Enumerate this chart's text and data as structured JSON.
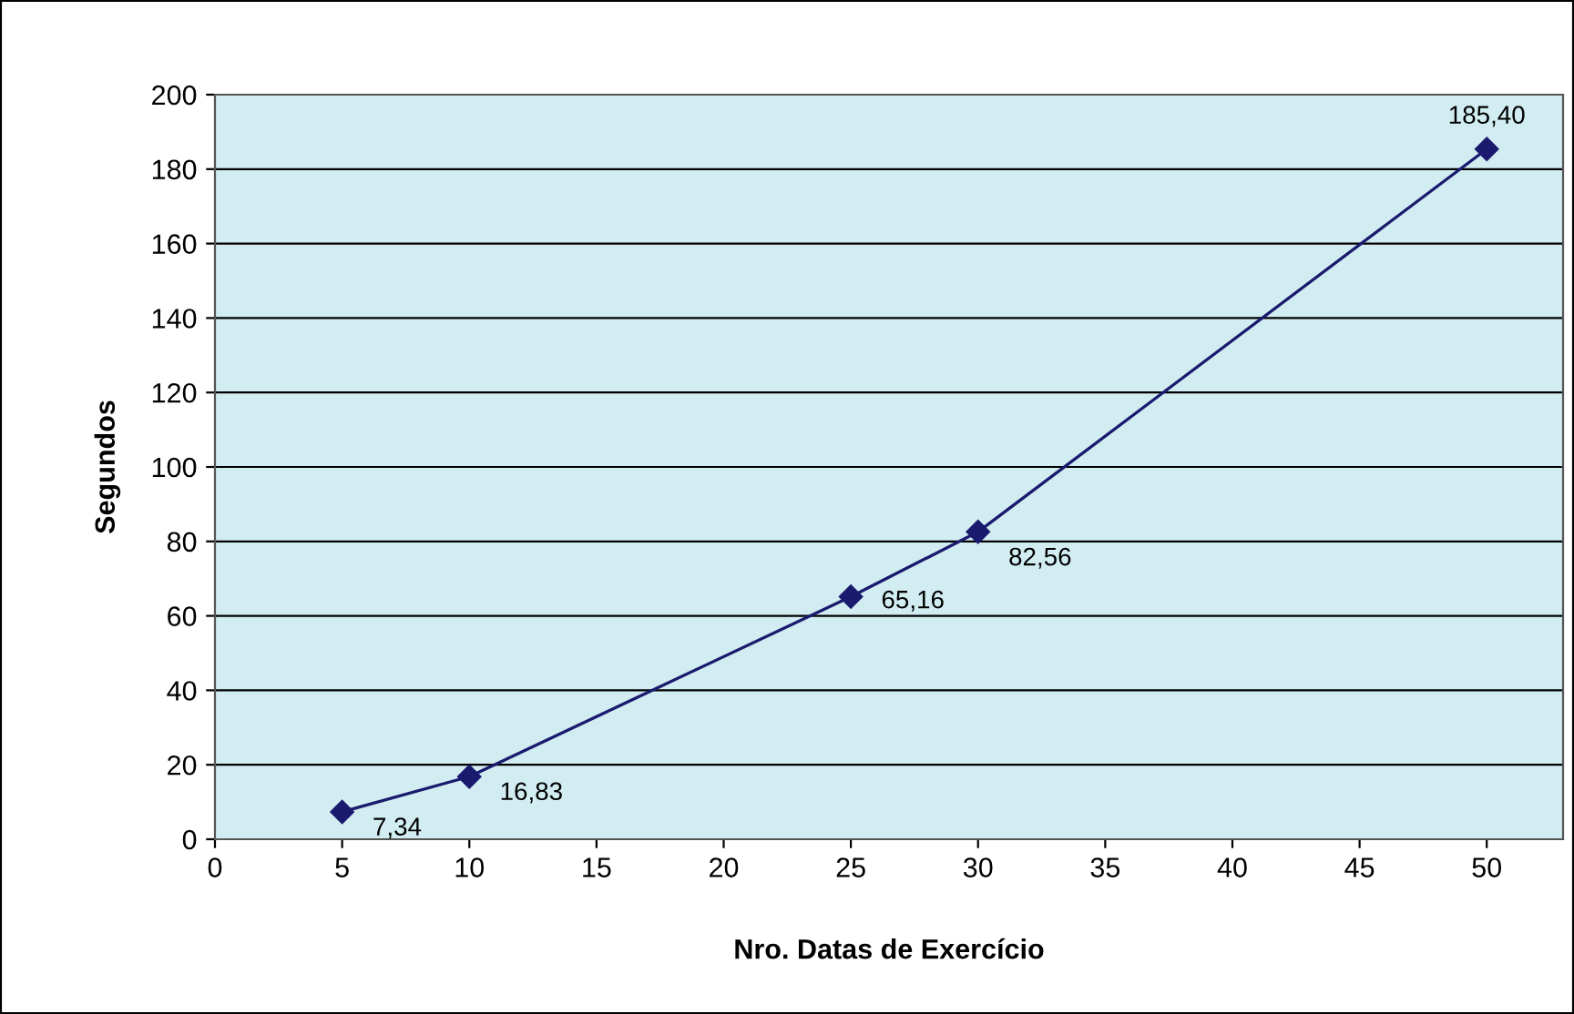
{
  "chart_data": {
    "type": "line",
    "xlabel": "Nro. Datas de Exercício",
    "ylabel": "Segundos",
    "x": [
      5,
      10,
      25,
      30,
      50
    ],
    "series": [
      {
        "color": "#1a1a6e",
        "values": [
          7.34,
          16.83,
          65.16,
          82.56,
          185.4
        ],
        "value_labels": [
          "7,34",
          "16,83",
          "65,16",
          "82,56",
          "185,40"
        ]
      }
    ],
    "xlim": [
      0,
      53
    ],
    "xticks": [
      0,
      5,
      10,
      15,
      20,
      25,
      30,
      35,
      40,
      45,
      50
    ],
    "ylim": [
      0,
      200
    ],
    "yticks": [
      0,
      20,
      40,
      60,
      80,
      100,
      120,
      140,
      160,
      180,
      200
    ],
    "grid": "y",
    "marker": "diamond",
    "line_style": "solid",
    "legend": false
  }
}
